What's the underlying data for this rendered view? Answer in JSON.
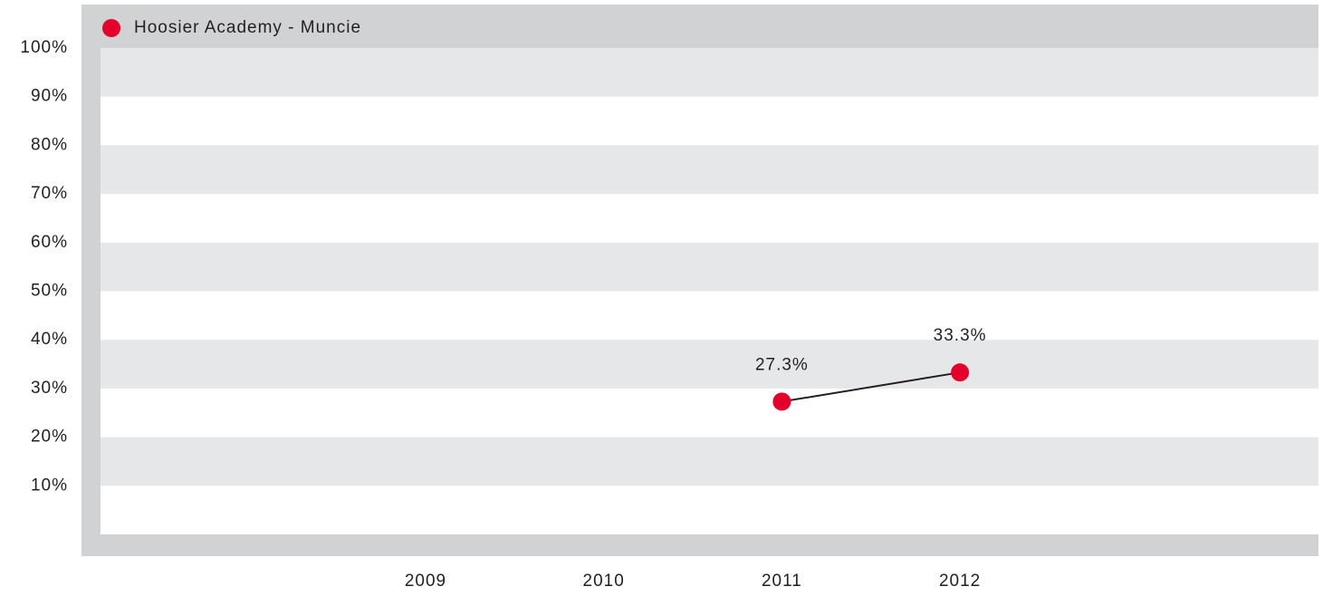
{
  "chart_data": {
    "type": "line",
    "categories": [
      "2009",
      "2010",
      "2011",
      "2012"
    ],
    "series": [
      {
        "name": "Hoosier Academy - Muncie",
        "color": "#e4002b",
        "line_color": "#231f20",
        "values": [
          null,
          null,
          27.3,
          33.3
        ],
        "value_labels": [
          null,
          null,
          "27.3%",
          "33.3%"
        ]
      }
    ],
    "ylim": [
      0,
      100
    ],
    "yticks": [
      {
        "value": 10,
        "label": "10%"
      },
      {
        "value": 20,
        "label": "20%"
      },
      {
        "value": 30,
        "label": "30%"
      },
      {
        "value": 40,
        "label": "40%"
      },
      {
        "value": 50,
        "label": "50%"
      },
      {
        "value": 60,
        "label": "60%"
      },
      {
        "value": 70,
        "label": "70%"
      },
      {
        "value": 80,
        "label": "80%"
      },
      {
        "value": 90,
        "label": "90%"
      },
      {
        "value": 100,
        "label": "100%"
      }
    ],
    "grid": true
  }
}
